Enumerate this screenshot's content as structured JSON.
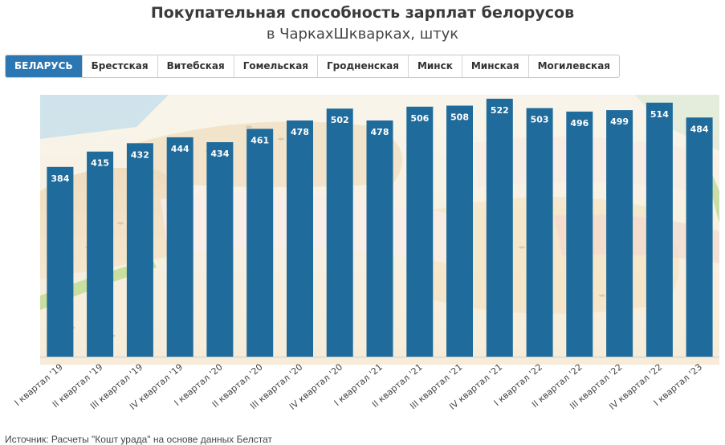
{
  "header": {
    "title": "Покупательная способность зарплат белорусов",
    "subtitle": "в ЧаркахШкварках, штук"
  },
  "tabs": [
    {
      "label": "БЕЛАРУСЬ",
      "active": true
    },
    {
      "label": "Брестская",
      "active": false
    },
    {
      "label": "Витебская",
      "active": false
    },
    {
      "label": "Гомельская",
      "active": false
    },
    {
      "label": "Гродненская",
      "active": false
    },
    {
      "label": "Минск",
      "active": false
    },
    {
      "label": "Минская",
      "active": false
    },
    {
      "label": "Могилевская",
      "active": false
    }
  ],
  "colors": {
    "bar": "#1f6b9b",
    "tab_active": "#2b77b3"
  },
  "chart_data": {
    "type": "bar",
    "title": "Покупательная способность зарплат белорусов",
    "subtitle": "в ЧаркахШкварках, штук",
    "categories": [
      "I квартал '19",
      "II квартал '19",
      "III квартал '19",
      "IV квартал '19",
      "I квартал '20",
      "II квартал '20",
      "III квартал '20",
      "IV квартал '20",
      "I квартал '21",
      "II квартал '21",
      "III квартал '21",
      "IV квартал '21",
      "I квартал '22",
      "II квартал '22",
      "III квартал '22",
      "IV квартал '22",
      "I квартал '23"
    ],
    "values": [
      384,
      415,
      432,
      444,
      434,
      461,
      478,
      502,
      478,
      506,
      508,
      522,
      503,
      496,
      499,
      514,
      484
    ],
    "data_labels": [
      "384",
      "415",
      "432",
      "444",
      "434",
      "461",
      "478",
      "502",
      "478",
      "506",
      "508",
      "522",
      "503",
      "496",
      "499",
      "514",
      "484"
    ],
    "ylim": [
      0,
      530
    ],
    "grid": false,
    "legend": "none"
  },
  "footer": {
    "source": "Источник: Расчеты \"Кошт урада\" на основе данных Белстат"
  }
}
